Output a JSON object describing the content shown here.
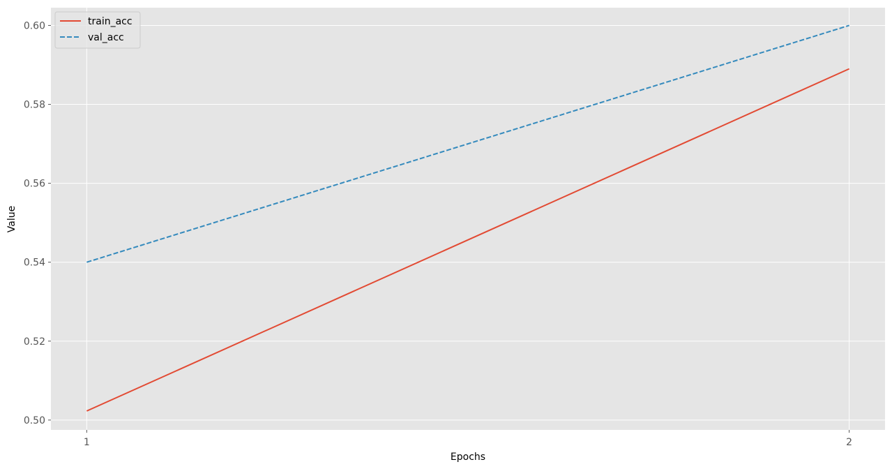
{
  "chart_data": {
    "type": "line",
    "title": "",
    "xlabel": "Epochs",
    "ylabel": "Value",
    "x": [
      1,
      2
    ],
    "xticks": [
      "1",
      "2"
    ],
    "yticks": [
      "0.50",
      "0.52",
      "0.54",
      "0.56",
      "0.58",
      "0.60"
    ],
    "xlim": [
      0.953,
      2.047
    ],
    "ylim": [
      0.4975,
      0.6045
    ],
    "grid": true,
    "legend": "top-left",
    "background": "#e5e5e5",
    "series": [
      {
        "name": "train_acc",
        "values": [
          0.5023,
          0.589
        ],
        "color": "#e24a33",
        "dash": "solid"
      },
      {
        "name": "val_acc",
        "values": [
          0.54,
          0.6
        ],
        "color": "#348abd",
        "dash": "dashed"
      }
    ]
  }
}
